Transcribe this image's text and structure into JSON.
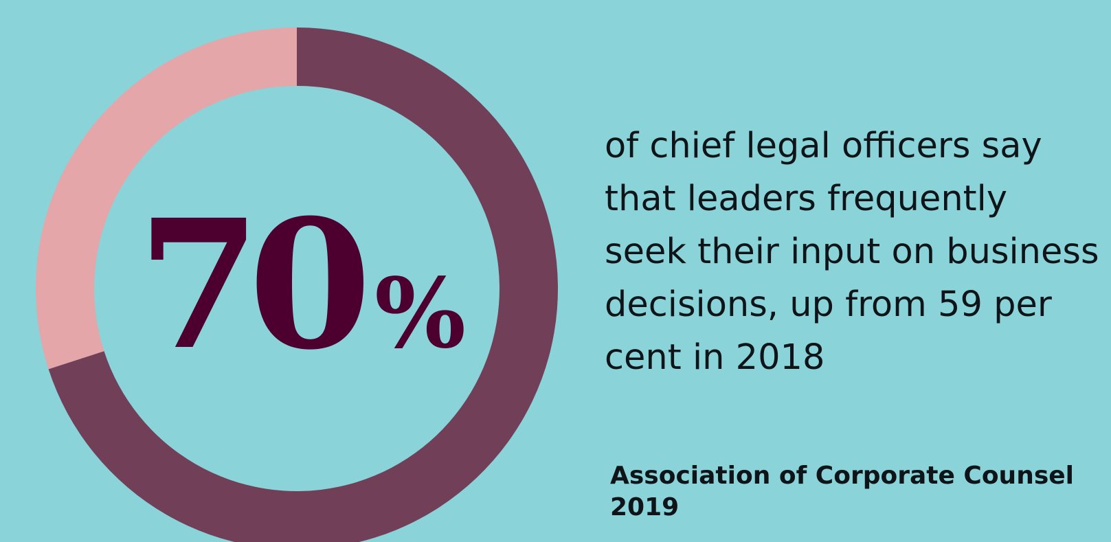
{
  "colors": {
    "background": "#8ad3d8",
    "ring_value": "#714058",
    "ring_remainder": "#e4a6a9",
    "number_text": "#4d0030",
    "body_text": "#0f1419"
  },
  "chart_data": {
    "type": "pie",
    "style": "donut",
    "categories": [
      "value",
      "remainder"
    ],
    "values": [
      70,
      30
    ],
    "start": "top",
    "direction": "clockwise",
    "center_label": "70%"
  },
  "stat": {
    "number": "70",
    "percent_sign": "%"
  },
  "description_lines": [
    "of chief legal officers say",
    "that leaders frequently",
    "seek their input on business",
    "decisions, up from 59 per",
    "cent in 2018"
  ],
  "source_lines": [
    "Association of Corporate Counsel",
    "2019"
  ]
}
